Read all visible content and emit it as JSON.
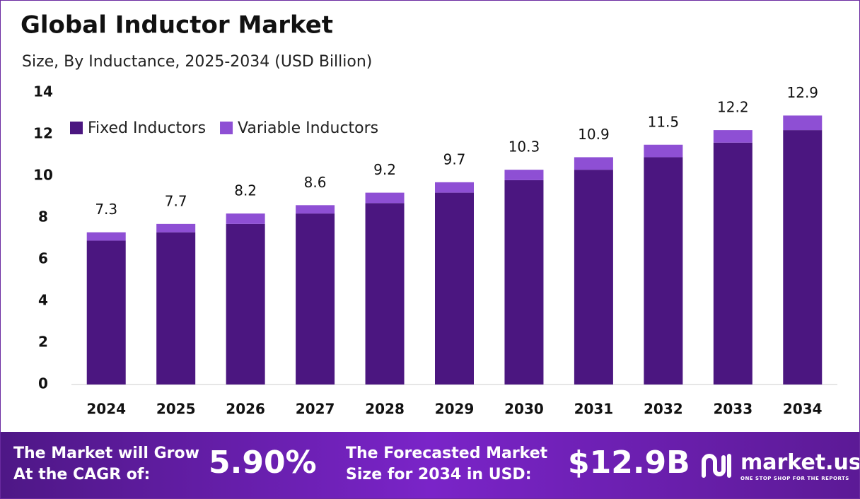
{
  "chart_data": {
    "type": "stacked-bar",
    "title": "Global Inductor Market",
    "subtitle": "Size, By Inductance, 2025-2034 (USD Billion)",
    "categories": [
      "2024",
      "2025",
      "2026",
      "2027",
      "2028",
      "2029",
      "2030",
      "2031",
      "2032",
      "2033",
      "2034"
    ],
    "series": [
      {
        "name": "Fixed Inductors",
        "color": "#4b1680",
        "values": [
          6.9,
          7.3,
          7.7,
          8.2,
          8.7,
          9.2,
          9.8,
          10.3,
          10.9,
          11.6,
          12.2
        ]
      },
      {
        "name": "Variable Inductors",
        "color": "#8e4fd4",
        "values": [
          0.4,
          0.4,
          0.5,
          0.4,
          0.5,
          0.5,
          0.5,
          0.6,
          0.6,
          0.6,
          0.7
        ]
      }
    ],
    "totals": [
      7.3,
      7.7,
      8.2,
      8.6,
      9.2,
      9.7,
      10.3,
      10.9,
      11.5,
      12.2,
      12.9
    ],
    "ylim": [
      0,
      14
    ],
    "yticks": [
      0,
      2,
      4,
      6,
      8,
      10,
      12,
      14
    ],
    "grid": false,
    "legend": "top-left"
  },
  "footer": {
    "cagr_label": [
      "The Market will Grow",
      "At the CAGR of:"
    ],
    "cagr_value": "5.90%",
    "forecast_label": [
      "The Forecasted Market",
      "Size for 2034 in USD:"
    ],
    "forecast_value": "$12.9B",
    "brand": "market.us",
    "tagline": "ONE STOP SHOP FOR THE REPORTS"
  }
}
